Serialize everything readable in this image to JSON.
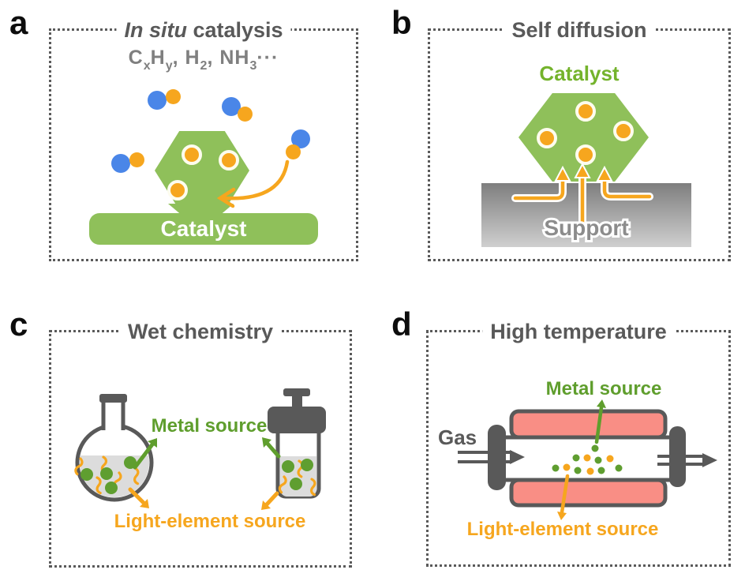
{
  "colors": {
    "green-shape": "#8fc05a",
    "green-text": "#5f9e2d",
    "green-text-light": "#74b32c",
    "green-dot": "#5f9e30",
    "yellow": "#f6a61e",
    "blue": "#4a86e8",
    "pink": "#f98e85",
    "gray-dark": "#595959",
    "gray-formula": "#7f7f7f",
    "gray-support-text": "#8c8c8c",
    "liquid-gray": "#dcdcdc",
    "support-top": "#7e7e7e",
    "support-bottom": "#cfcfcf",
    "ring-white": "#fdfcee"
  },
  "panel_a": {
    "label": "a",
    "title_italic": "In situ",
    "title_rest": " catalysis",
    "formula_segments": [
      {
        "text": "C"
      },
      {
        "text": "x",
        "sub": true
      },
      {
        "text": "H"
      },
      {
        "text": "y",
        "sub": true
      },
      {
        "text": ", H"
      },
      {
        "text": "2",
        "sub": true
      },
      {
        "text": ", NH"
      },
      {
        "text": "3",
        "sub": true
      },
      {
        "text": "···"
      }
    ],
    "catalyst_bar_label": "Catalyst"
  },
  "panel_b": {
    "label": "b",
    "title": "Self diffusion",
    "catalyst_label": "Catalyst",
    "support_label": "Support"
  },
  "panel_c": {
    "label": "c",
    "title": "Wet chemistry",
    "metal_source_label": "Metal source",
    "light_element_label": "Light-element source"
  },
  "panel_d": {
    "label": "d",
    "title": "High temperature",
    "gas_label": "Gas",
    "metal_source_label": "Metal source",
    "light_element_label": "Light-element source"
  }
}
